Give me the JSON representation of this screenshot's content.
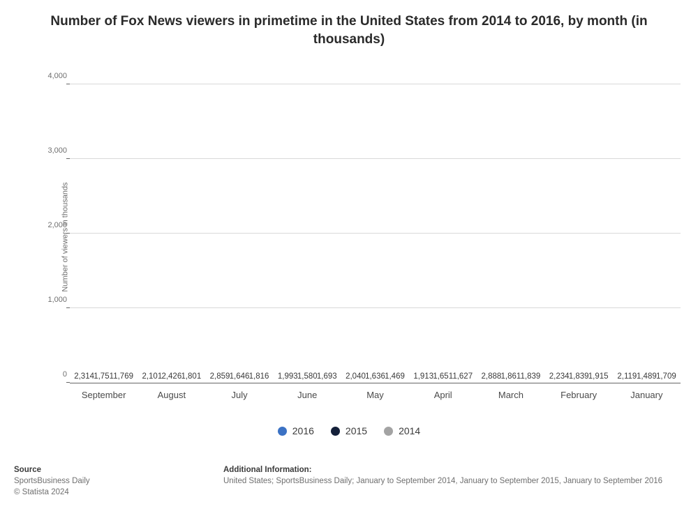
{
  "title": "Number of Fox News viewers in primetime in the United States from 2014 to 2016, by month (in thousands)",
  "chart": {
    "type": "bar",
    "ylabel": "Number of viewers in thousands",
    "ylim": [
      0,
      4200
    ],
    "yticks": [
      0,
      1000,
      2000,
      3000,
      4000
    ],
    "ytick_labels": [
      "0",
      "1,000",
      "2,000",
      "3,000",
      "4,000"
    ],
    "grid_color": "#d9d9d9",
    "background_color": "#ffffff",
    "label_fontsize": 11.5,
    "categories": [
      "September",
      "August",
      "July",
      "June",
      "May",
      "April",
      "March",
      "February",
      "January"
    ],
    "series": [
      {
        "name": "2016",
        "color": "#3b72c4",
        "values": [
          2314,
          2101,
          2859,
          1993,
          2040,
          1913,
          2888,
          2234,
          2119
        ],
        "value_labels": [
          "2,314",
          "2,101",
          "2,859",
          "1,993",
          "2,040",
          "1,913",
          "2,888",
          "2,234",
          "2,119"
        ]
      },
      {
        "name": "2015",
        "color": "#14203a",
        "values": [
          1751,
          2426,
          1646,
          1580,
          1636,
          1651,
          1861,
          1839,
          1489
        ],
        "value_labels": [
          "1,751",
          "2,426",
          "1,646",
          "1,580",
          "1,636",
          "1,651",
          "1,861",
          "1,839",
          "1,489"
        ]
      },
      {
        "name": "2014",
        "color": "#a3a3a3",
        "values": [
          1769,
          1801,
          1816,
          1693,
          1469,
          1627,
          1839,
          1915,
          1709
        ],
        "value_labels": [
          "1,769",
          "1,801",
          "1,816",
          "1,693",
          "1,469",
          "1,627",
          "1,839",
          "1,915",
          "1,709"
        ]
      }
    ]
  },
  "footer": {
    "source_heading": "Source",
    "source_line1": "SportsBusiness Daily",
    "source_line2": "© Statista 2024",
    "info_heading": "Additional Information:",
    "info_line": "United States; SportsBusiness Daily; January to September 2014, January to September 2015, January to September 2016"
  }
}
